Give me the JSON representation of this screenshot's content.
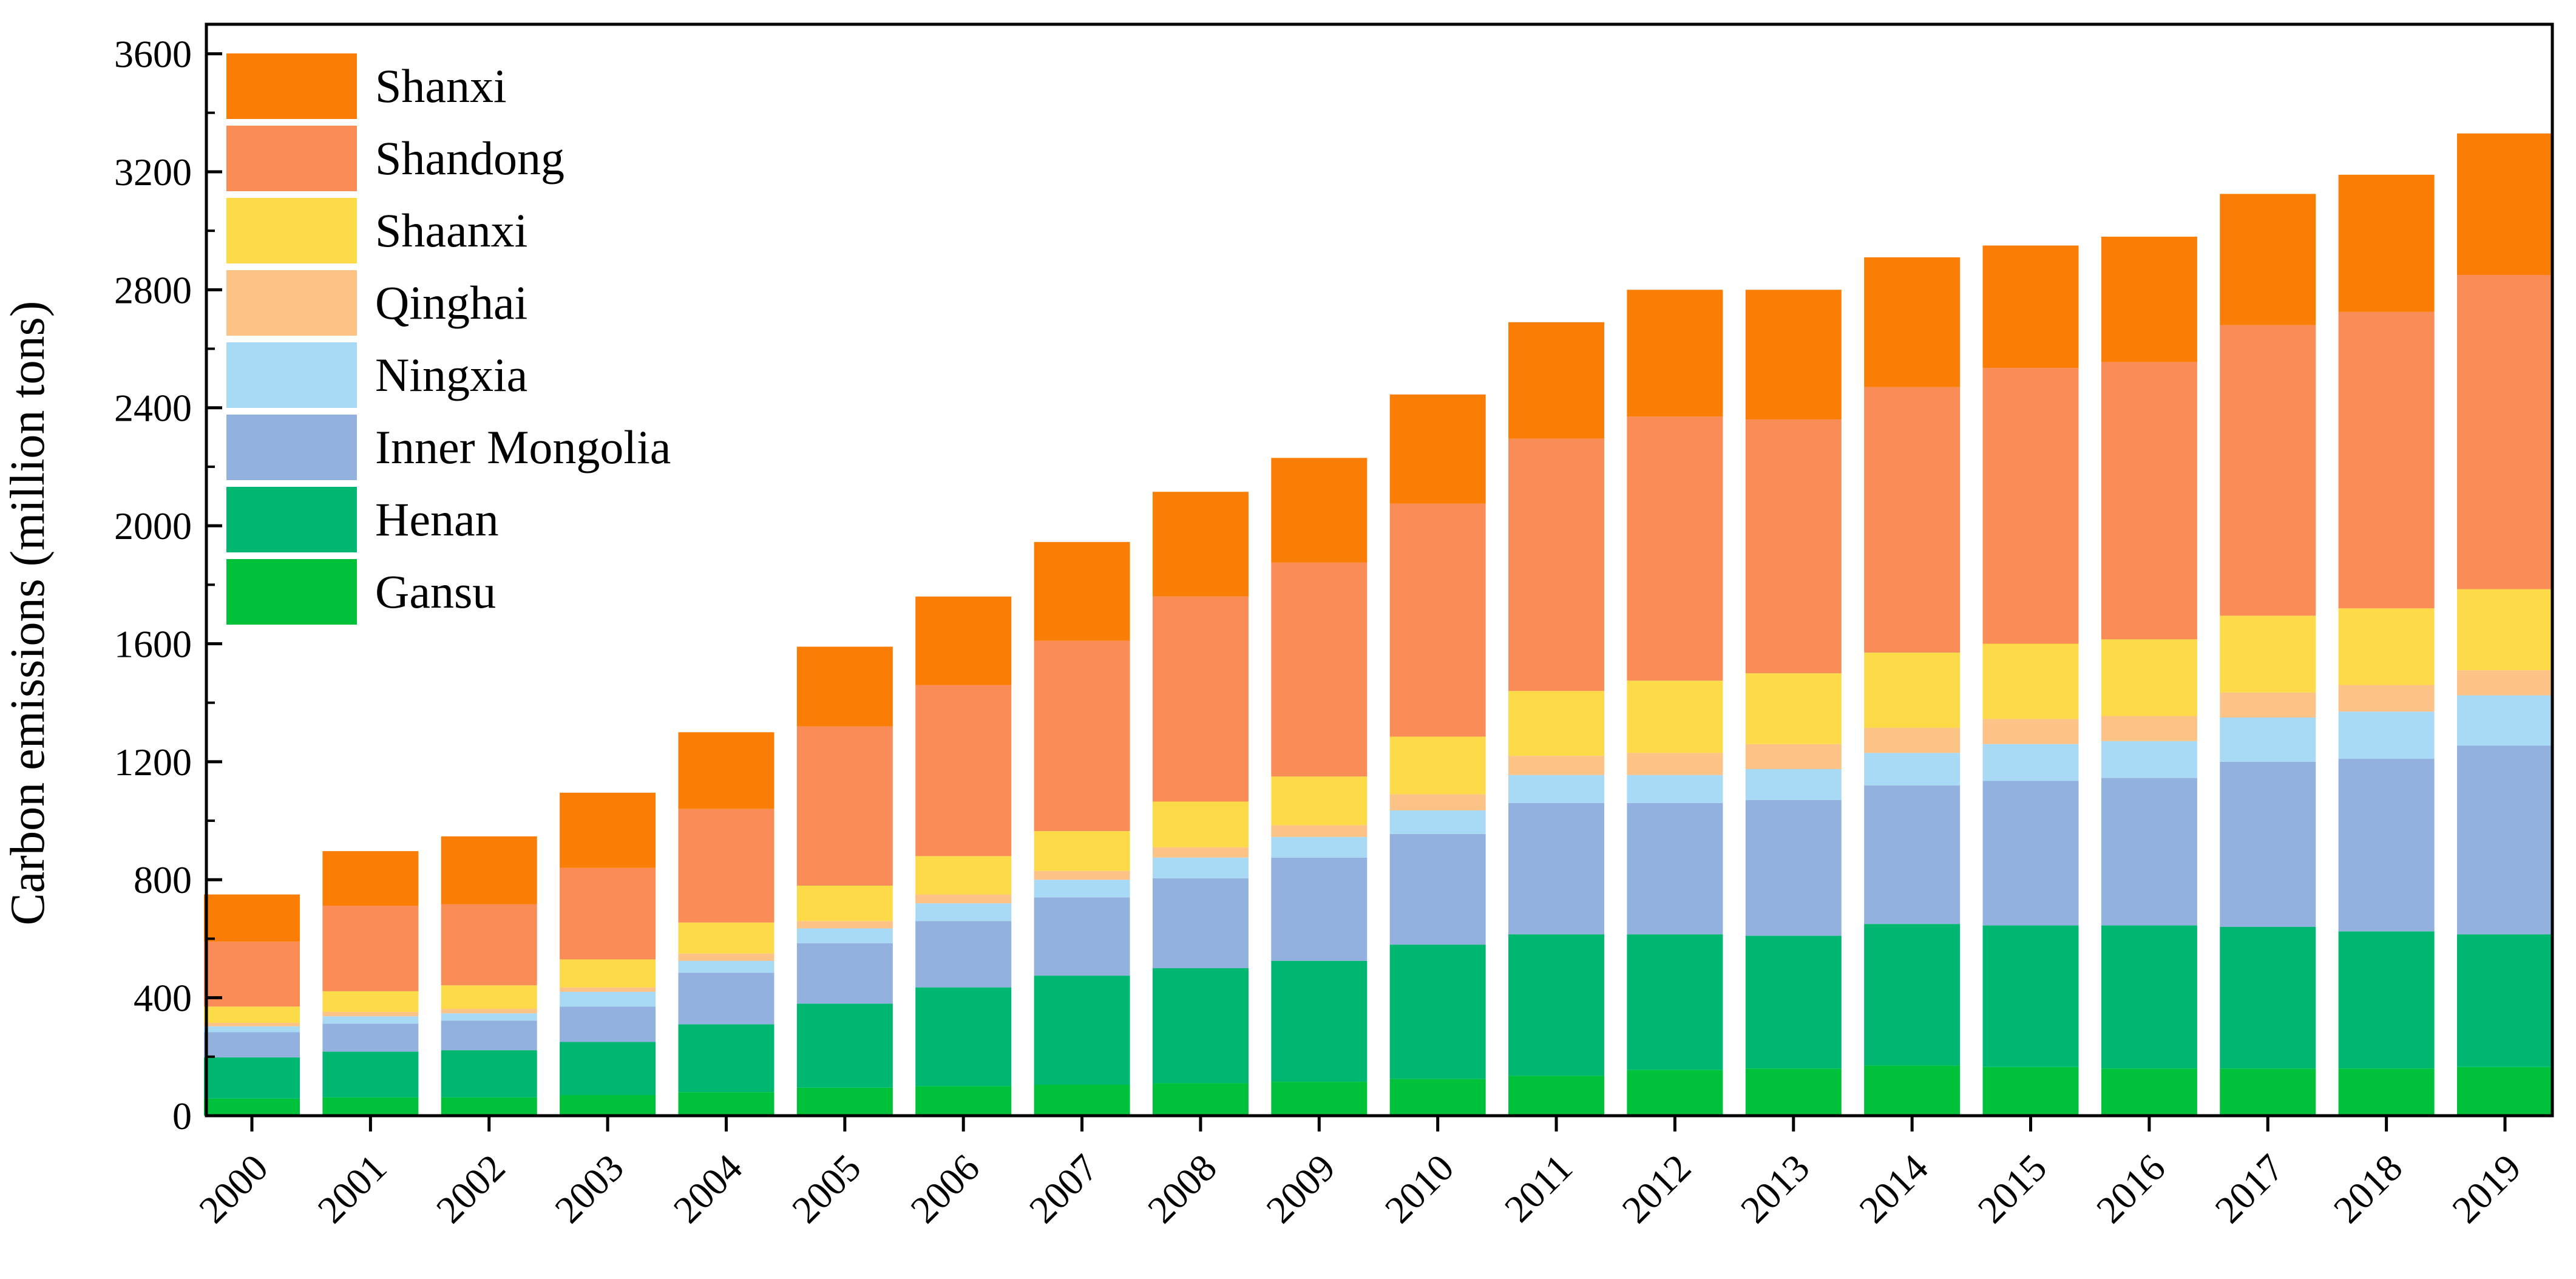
{
  "chart_data": {
    "type": "bar",
    "stacked": true,
    "title": "",
    "xlabel": "",
    "ylabel": "Carbon emissions (million tons)",
    "ylim": [
      0,
      3700
    ],
    "yticks": [
      0,
      400,
      800,
      1200,
      1600,
      2000,
      2400,
      2800,
      3200,
      3600
    ],
    "legend_position": "top-left",
    "categories": [
      "2000",
      "2001",
      "2002",
      "2003",
      "2004",
      "2005",
      "2006",
      "2007",
      "2008",
      "2009",
      "2010",
      "2011",
      "2012",
      "2013",
      "2014",
      "2015",
      "2016",
      "2017",
      "2018",
      "2019"
    ],
    "series": [
      {
        "name": "Gansu",
        "color": "#00C13A",
        "values": [
          58,
          62,
          62,
          70,
          80,
          95,
          100,
          105,
          110,
          115,
          125,
          135,
          155,
          160,
          170,
          165,
          160,
          160,
          160,
          165
        ]
      },
      {
        "name": "Henan",
        "color": "#00B771",
        "values": [
          140,
          155,
          160,
          180,
          230,
          285,
          335,
          370,
          390,
          410,
          455,
          480,
          460,
          450,
          480,
          480,
          485,
          480,
          465,
          450
        ]
      },
      {
        "name": "Inner Mongolia",
        "color": "#92B1DF",
        "values": [
          85,
          95,
          100,
          120,
          175,
          205,
          225,
          265,
          305,
          350,
          375,
          445,
          445,
          460,
          470,
          490,
          500,
          560,
          585,
          640
        ]
      },
      {
        "name": "Ningxia",
        "color": "#A9DAF5",
        "values": [
          20,
          25,
          25,
          50,
          40,
          50,
          60,
          60,
          70,
          70,
          80,
          95,
          95,
          105,
          110,
          125,
          125,
          150,
          160,
          170
        ]
      },
      {
        "name": "Qinghai",
        "color": "#FCC286",
        "values": [
          12,
          15,
          15,
          15,
          25,
          25,
          30,
          30,
          35,
          40,
          55,
          65,
          75,
          85,
          85,
          85,
          85,
          85,
          90,
          85
        ]
      },
      {
        "name": "Shaanxi",
        "color": "#FDDB48",
        "values": [
          55,
          70,
          80,
          95,
          105,
          120,
          130,
          135,
          155,
          165,
          195,
          220,
          245,
          240,
          255,
          255,
          260,
          260,
          260,
          275
        ]
      },
      {
        "name": "Shandong",
        "color": "#FA8C57",
        "values": [
          220,
          290,
          275,
          310,
          385,
          540,
          580,
          645,
          695,
          725,
          790,
          855,
          895,
          860,
          900,
          935,
          940,
          985,
          1005,
          1065
        ]
      },
      {
        "name": "Shanxi",
        "color": "#FA7E05",
        "values": [
          160,
          185,
          230,
          255,
          260,
          270,
          300,
          335,
          355,
          355,
          370,
          395,
          430,
          440,
          440,
          415,
          425,
          445,
          465,
          480
        ]
      }
    ]
  }
}
